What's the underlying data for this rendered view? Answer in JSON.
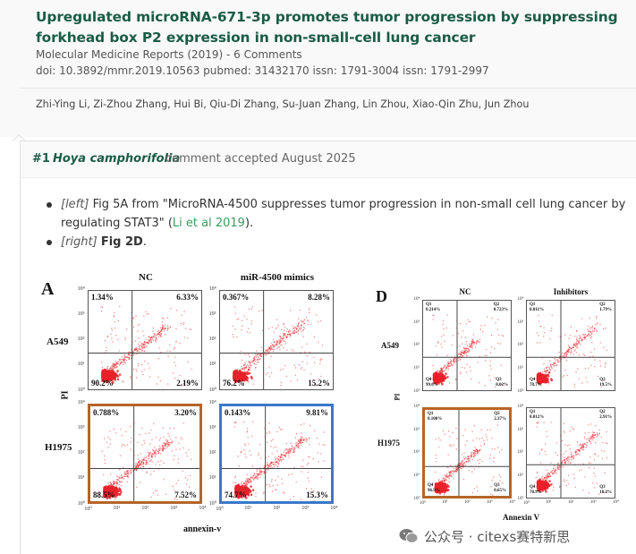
{
  "article": {
    "title": "Upregulated microRNA-671-3p promotes tumor progression by suppressing forkhead box P2 expression in non-small-cell lung cancer",
    "journal_line": "Molecular Medicine Reports (2019) - 6 Comments",
    "ids_line": "doi: 10.3892/mmr.2019.10563  pubmed: 31432170  issn: 1791-3004  issn: 1791-2997",
    "authors": "Zhi-Ying Li, Zi-Zhou Zhang, Hui Bi, Qiu-Di Zhang, Su-Juan Zhang, Lin Zhou, Xiao-Qin Zhu, Jun Zhou"
  },
  "comment": {
    "number": "#1",
    "author": "Hoya camphorifolia",
    "status": "comment accepted August 2025",
    "bullet1_tag": "[left]",
    "bullet1_text": " Fig 5A from \"MicroRNA-4500 suppresses tumor progression in non-small cell lung cancer by regulating STAT3\" (",
    "bullet1_link": "Li et al 2019",
    "bullet1_end": ").",
    "bullet2_tag": "[right]",
    "bullet2_text": "Fig 2D",
    "bullet2_end": "."
  },
  "figure_left": {
    "panel": "A",
    "columns": [
      "NC",
      "miR-4500 mimics"
    ],
    "rows": [
      "A549",
      "H1975"
    ],
    "x_axis": "annexin-v",
    "y_axis": "PI",
    "quadrants": [
      [
        "1.34%",
        "6.33%",
        "90.2%",
        "2.19%"
      ],
      [
        "0.367%",
        "8.28%",
        "76.2%",
        "15.2%"
      ],
      [
        "0.788%",
        "3.20%",
        "88.5%",
        "7.52%"
      ],
      [
        "0.143%",
        "9.81%",
        "74.7%",
        "15.3%"
      ]
    ],
    "highlight_colors": [
      "#b5652a",
      "#3a78c9"
    ]
  },
  "figure_right": {
    "panel": "D",
    "columns": [
      "NC",
      "Inhibitors"
    ],
    "rows": [
      "A549",
      "H1975"
    ],
    "x_axis": "Annexin V",
    "y_axis": "PI",
    "quadrants": [
      [
        "Q1\n0.214%",
        "Q2\n0.723%",
        "Q4\n99.0%",
        "Q3\n0.02%"
      ],
      [
        "Q1\n0.011%",
        "Q2\n1.79%",
        "Q4\n78.7%",
        "Q3\n19.5%"
      ],
      [
        "Q1\n0.100%",
        "Q2\n2.37%",
        "Q4\n96.9%",
        "Q3\n0.65%"
      ],
      [
        "Q1\n0.012%",
        "Q2\n2.91%",
        "Q4\n78.9%",
        "Q3\n18.2%"
      ]
    ],
    "highlight_color": "#b5652a"
  },
  "ticks": {
    "y": [
      "10⁴",
      "10³",
      "10²",
      "10¹",
      "10⁰"
    ],
    "x": [
      "10⁰",
      "10¹",
      "10²",
      "10³",
      "10⁴"
    ]
  },
  "watermark": {
    "text": "公众号 · citexs赛特新思",
    "icon": "wechat-icon"
  },
  "colors": {
    "title": "#1a5c45",
    "link": "#3a9d5d",
    "dots": "#e8222a"
  }
}
